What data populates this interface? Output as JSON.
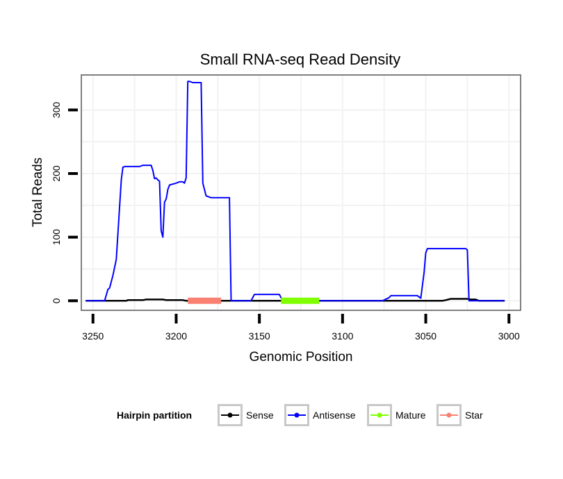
{
  "chart_data": {
    "type": "line",
    "title": "Small RNA-seq Read Density",
    "xlabel": "Genomic Position",
    "ylabel": "Total Reads",
    "xlim": [
      3257,
      2993
    ],
    "x_reversed": true,
    "ylim": [
      -15,
      355
    ],
    "x_ticks": [
      3250,
      3200,
      3150,
      3100,
      3050,
      3000
    ],
    "x_tick_labels": [
      "3250",
      "3200",
      "3150",
      "3100",
      "3050",
      "3000"
    ],
    "y_ticks": [
      0,
      100,
      200,
      300
    ],
    "y_tick_labels": [
      "0",
      "100",
      "200",
      "300"
    ],
    "grid": true,
    "legend": {
      "title": "Hairpin partition",
      "position": "bottom",
      "entries": [
        {
          "name": "Sense",
          "color": "#000000"
        },
        {
          "name": "Antisense",
          "color": "#0000ff"
        },
        {
          "name": "Mature",
          "color": "#7fff00"
        },
        {
          "name": "Star",
          "color": "#fa8072"
        }
      ]
    },
    "series": [
      {
        "name": "Sense",
        "color": "#000000",
        "x": [
          3254,
          3230,
          3229,
          3220,
          3218,
          3208,
          3206,
          3196,
          3194,
          3185,
          3040,
          3038,
          3035,
          3025,
          3023,
          3020,
          3018,
          3003
        ],
        "y": [
          0,
          0,
          1,
          1,
          2,
          2,
          1,
          1,
          0,
          0,
          0,
          1,
          3,
          3,
          2,
          2,
          0,
          0
        ]
      },
      {
        "name": "Antisense",
        "color": "#0000ff",
        "x": [
          3254,
          3243,
          3241,
          3240,
          3238,
          3236,
          3233,
          3232,
          3231,
          3222,
          3221,
          3220,
          3215,
          3214,
          3213,
          3212,
          3211,
          3210,
          3209,
          3208,
          3207,
          3206,
          3205,
          3204,
          3200,
          3198,
          3196,
          3195,
          3194,
          3193,
          3192,
          3190,
          3189,
          3186,
          3185,
          3184,
          3182,
          3179,
          3170,
          3168,
          3167,
          3155,
          3154,
          3153,
          3138,
          3137,
          3136,
          3076,
          3072,
          3071,
          3055,
          3053,
          3051,
          3050,
          3049,
          3026,
          3025,
          3024,
          3023,
          3019,
          3018,
          3003
        ],
        "y": [
          0,
          0,
          18,
          20,
          40,
          65,
          190,
          210,
          211,
          211,
          212,
          213,
          213,
          205,
          192,
          193,
          190,
          188,
          110,
          100,
          155,
          160,
          175,
          182,
          185,
          187,
          187,
          185,
          193,
          345,
          345,
          343,
          343,
          343,
          343,
          185,
          165,
          162,
          162,
          162,
          0,
          0,
          5,
          10,
          10,
          5,
          0,
          0,
          5,
          8,
          8,
          4,
          45,
          75,
          82,
          82,
          80,
          0,
          0,
          0,
          0,
          0
        ]
      },
      {
        "name": "Mature",
        "color": "#7fff00",
        "x": [
          3137,
          3114
        ],
        "y": [
          0,
          0
        ]
      },
      {
        "name": "Star",
        "color": "#fa8072",
        "x": [
          3193,
          3173
        ],
        "y": [
          0,
          0
        ]
      }
    ]
  }
}
